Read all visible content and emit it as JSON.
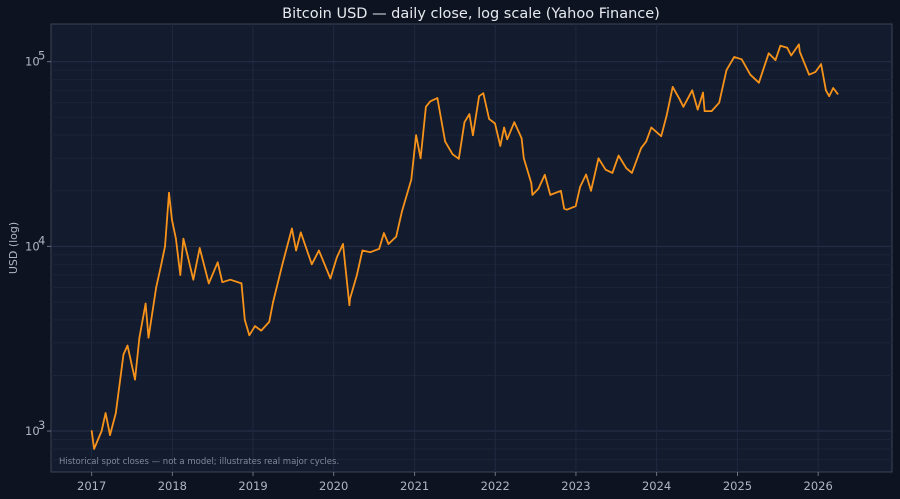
{
  "chart_data": {
    "type": "line",
    "title": "Bitcoin USD — daily close, log scale (Yahoo Finance)",
    "xlabel": "",
    "ylabel": "USD (log)",
    "yscale": "log",
    "ylim": [
      600,
      160000
    ],
    "xlim": [
      "2016-07-01",
      "2026-12-01"
    ],
    "x_ticks": [
      "2017",
      "2018",
      "2019",
      "2020",
      "2021",
      "2022",
      "2023",
      "2024",
      "2025",
      "2026"
    ],
    "y_ticks": [
      {
        "value": 1000,
        "label": "10",
        "exp": "3"
      },
      {
        "value": 10000,
        "label": "10",
        "exp": "4"
      },
      {
        "value": 100000,
        "label": "10",
        "exp": "5"
      }
    ],
    "grid": true,
    "annotation": "Historical spot closes — not a model; illustrates real major cycles.",
    "series": [
      {
        "color": "#f7931a",
        "x": [
          "2017-01-01",
          "2017-01-12",
          "2017-02-15",
          "2017-03-05",
          "2017-03-25",
          "2017-04-20",
          "2017-05-25",
          "2017-06-12",
          "2017-07-16",
          "2017-08-05",
          "2017-09-02",
          "2017-09-15",
          "2017-10-20",
          "2017-11-12",
          "2017-11-29",
          "2017-12-17",
          "2017-12-30",
          "2018-01-17",
          "2018-02-06",
          "2018-02-20",
          "2018-03-10",
          "2018-04-06",
          "2018-05-05",
          "2018-06-15",
          "2018-07-25",
          "2018-08-15",
          "2018-09-20",
          "2018-11-10",
          "2018-11-25",
          "2018-12-15",
          "2019-01-10",
          "2019-02-07",
          "2019-03-15",
          "2019-04-02",
          "2019-05-14",
          "2019-06-26",
          "2019-07-15",
          "2019-08-05",
          "2019-09-24",
          "2019-10-26",
          "2019-12-17",
          "2020-01-15",
          "2020-02-12",
          "2020-03-12",
          "2020-03-15",
          "2020-04-15",
          "2020-05-10",
          "2020-06-15",
          "2020-07-25",
          "2020-08-15",
          "2020-09-05",
          "2020-10-10",
          "2020-11-05",
          "2020-12-17",
          "2021-01-08",
          "2021-01-28",
          "2021-02-21",
          "2021-03-13",
          "2021-04-14",
          "2021-05-19",
          "2021-06-22",
          "2021-07-20",
          "2021-08-15",
          "2021-09-06",
          "2021-09-22",
          "2021-10-20",
          "2021-11-08",
          "2021-12-04",
          "2021-12-31",
          "2022-01-24",
          "2022-02-10",
          "2022-02-24",
          "2022-03-28",
          "2022-04-30",
          "2022-05-10",
          "2022-06-13",
          "2022-06-18",
          "2022-07-15",
          "2022-08-13",
          "2022-09-07",
          "2022-10-25",
          "2022-11-09",
          "2022-11-21",
          "2022-12-31",
          "2023-01-20",
          "2023-02-16",
          "2023-03-10",
          "2023-04-13",
          "2023-05-15",
          "2023-06-15",
          "2023-07-13",
          "2023-08-17",
          "2023-09-11",
          "2023-10-23",
          "2023-11-15",
          "2023-12-08",
          "2024-01-22",
          "2024-02-15",
          "2024-03-14",
          "2024-04-13",
          "2024-05-01",
          "2024-06-10",
          "2024-07-05",
          "2024-07-29",
          "2024-08-05",
          "2024-09-06",
          "2024-10-10",
          "2024-11-12",
          "2024-12-17",
          "2025-01-20",
          "2025-02-28",
          "2025-04-08",
          "2025-05-22",
          "2025-06-22",
          "2025-07-14",
          "2025-08-14",
          "2025-09-01",
          "2025-10-06",
          "2025-10-10",
          "2025-11-21",
          "2025-12-20",
          "2026-01-14",
          "2026-02-05",
          "2026-02-20",
          "2026-03-10",
          "2026-03-30"
        ],
        "values": [
          1000,
          800,
          1000,
          1250,
          950,
          1250,
          2600,
          2900,
          1900,
          3200,
          4900,
          3200,
          6000,
          8000,
          10000,
          19500,
          14000,
          11000,
          7000,
          11000,
          9000,
          6600,
          9800,
          6300,
          8200,
          6400,
          6600,
          6300,
          4000,
          3300,
          3700,
          3500,
          3900,
          5000,
          8000,
          12500,
          9500,
          11900,
          8000,
          9500,
          6700,
          8700,
          10300,
          4800,
          5200,
          7000,
          9500,
          9300,
          9700,
          11800,
          10300,
          11300,
          15500,
          23000,
          40000,
          30000,
          57000,
          61000,
          63500,
          37000,
          31500,
          29800,
          47000,
          52000,
          40000,
          65000,
          67500,
          49000,
          46300,
          35000,
          44000,
          38000,
          47000,
          38500,
          30000,
          22000,
          19000,
          20500,
          24400,
          19000,
          20000,
          16000,
          15800,
          16500,
          21000,
          24500,
          20000,
          30000,
          26000,
          25000,
          31000,
          26500,
          25000,
          34000,
          37000,
          44000,
          39500,
          51000,
          73000,
          63000,
          57000,
          70000,
          55000,
          68000,
          54000,
          54000,
          60000,
          90000,
          106000,
          103000,
          85000,
          77000,
          111000,
          102000,
          122000,
          119000,
          108000,
          124000,
          113000,
          85000,
          88000,
          97000,
          70000,
          65000,
          72000,
          67000
        ]
      }
    ]
  }
}
